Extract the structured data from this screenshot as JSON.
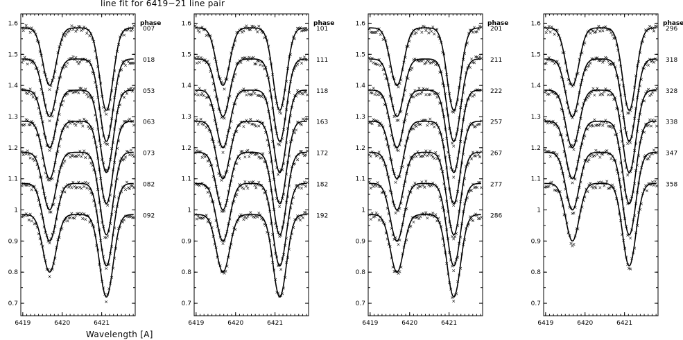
{
  "chart_data": {
    "type": "line",
    "title": "line fit for 6419−21 line pair",
    "xlabel": "Wavelength [A]",
    "ylabel": "",
    "xlim": [
      6418.95,
      6421.85
    ],
    "ylim": [
      0.66,
      1.63
    ],
    "x_ticks": [
      "6419",
      "6420",
      "6421"
    ],
    "y_ticks": [
      "0.7",
      "0.8",
      "0.9",
      "1",
      "1.1",
      "1.2",
      "1.3",
      "1.4",
      "1.5",
      "1.6"
    ],
    "y_tick_values": [
      0.7,
      0.8,
      0.9,
      1.0,
      1.1,
      1.2,
      1.3,
      1.4,
      1.5,
      1.6
    ],
    "phase_header": "phase",
    "profile_shape": {
      "continuum": 0.985,
      "line1_center": 6419.68,
      "line1_depth": 0.185,
      "line2_center": 6421.12,
      "line2_depth": 0.265,
      "line_width": 0.24,
      "observed_scatter": 0.012
    },
    "panels": [
      {
        "name": "phase 007-092",
        "phases": [
          "007",
          "018",
          "053",
          "063",
          "073",
          "082",
          "092"
        ],
        "offsets": [
          0.6,
          0.5,
          0.4,
          0.3,
          0.2,
          0.1,
          0.0
        ]
      },
      {
        "name": "phase 101-192",
        "phases": [
          "101",
          "111",
          "118",
          "163",
          "172",
          "182",
          "192"
        ],
        "offsets": [
          0.6,
          0.5,
          0.4,
          0.3,
          0.2,
          0.1,
          0.0
        ]
      },
      {
        "name": "phase 201-286",
        "phases": [
          "201",
          "211",
          "222",
          "257",
          "267",
          "277",
          "286"
        ],
        "offsets": [
          0.6,
          0.5,
          0.4,
          0.3,
          0.2,
          0.1,
          0.0
        ]
      },
      {
        "name": "phase 296-358",
        "phases": [
          "296",
          "318",
          "328",
          "338",
          "347",
          "358"
        ],
        "offsets": [
          0.6,
          0.5,
          0.4,
          0.3,
          0.2,
          0.1
        ]
      }
    ]
  }
}
